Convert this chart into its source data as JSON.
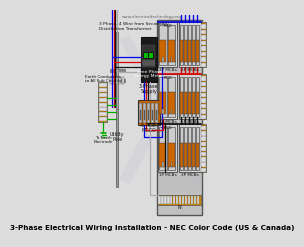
{
  "title": "3-Phase Electrical Wiring Installation - NEC Color Code (US & Canada)",
  "title_fontsize": 5.2,
  "bg_color": "#dcdcdc",
  "wire_colors": {
    "phase_a": "#0000ee",
    "phase_b": "#dd0000",
    "phase_c": "#111111",
    "neutral": "#aaaaaa",
    "ground": "#00aa00"
  },
  "watermark": "www.electricaltechnology.org",
  "label_transformer": "3 Phase, 4 Wire from Secondary\nDistribution Transformer",
  "label_pole": "Utility\nPole",
  "label_meter": "Three Phase\nEnergy Meter",
  "label_supply": "3-Phase\nSupply",
  "label_mccb": "5 Pole\nMCCO",
  "label_earth_cond": "Earth Conductors\nto All Sub Circuits",
  "label_to_earth": "To Earth\nElectrode",
  "label_rcd": "RCD",
  "panel_bg": "#c8c8c8",
  "panel_border": "#666666",
  "breaker_body": "#d8d8d8",
  "breaker_handle": "#cc6600",
  "terminal_color": "#cc8800"
}
